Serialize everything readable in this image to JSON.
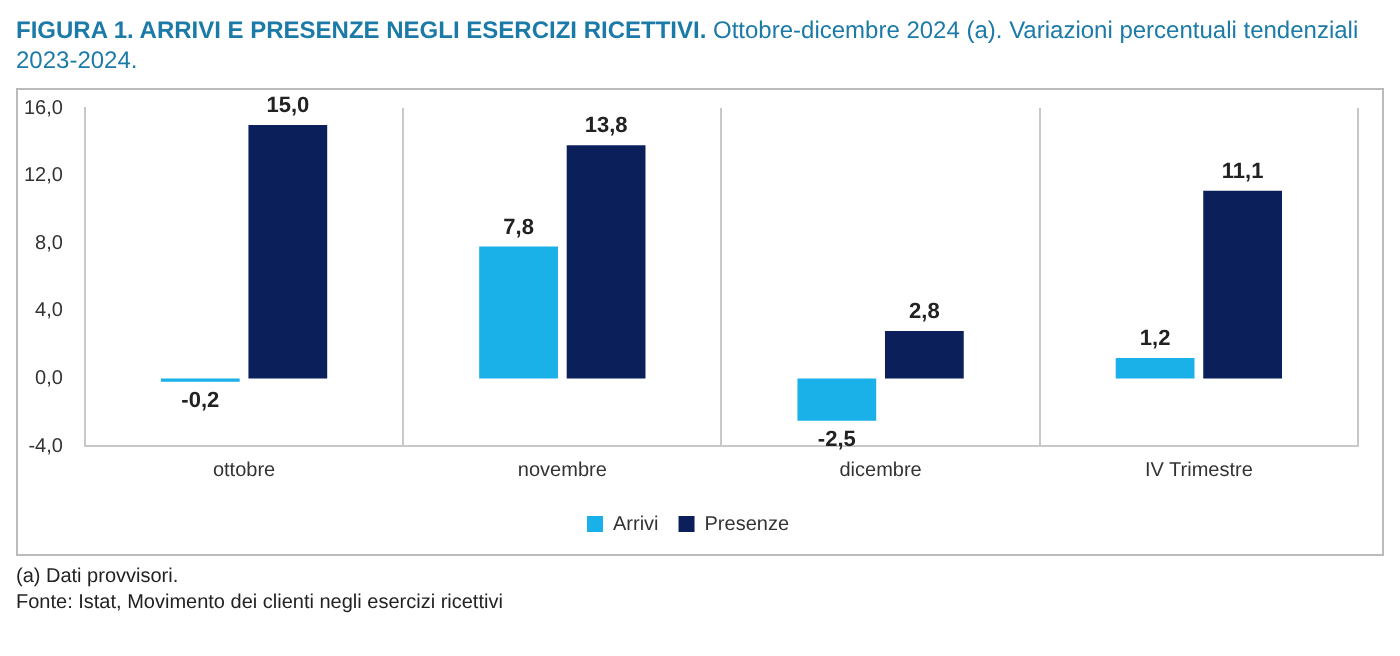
{
  "chart_data": {
    "type": "bar",
    "title": "FIGURA 1. ARRIVI E PRESENZE NEGLI ESERCIZI RICETTIVI.",
    "subtitle": "Ottobre-dicembre 2024 (a). Variazioni percentuali tendenziali 2023-2024.",
    "categories": [
      "ottobre",
      "novembre",
      "dicembre",
      "IV Trimestre"
    ],
    "series": [
      {
        "name": "Arrivi",
        "color": "#1ab0e8",
        "values": [
          -0.2,
          7.8,
          -2.5,
          1.2
        ],
        "value_labels": [
          "-0,2",
          "7,8",
          "-2,5",
          "1,2"
        ]
      },
      {
        "name": "Presenze",
        "color": "#0b1f5b",
        "values": [
          15.0,
          13.8,
          2.8,
          11.1
        ],
        "value_labels": [
          "15,0",
          "13,8",
          "2,8",
          "11,1"
        ]
      }
    ],
    "ylim": [
      -4,
      16
    ],
    "yticks": [
      {
        "value": -4,
        "label": "-4,0"
      },
      {
        "value": 0,
        "label": "0,0"
      },
      {
        "value": 4,
        "label": "4,0"
      },
      {
        "value": 8,
        "label": "8,0"
      },
      {
        "value": 12,
        "label": "12,0"
      },
      {
        "value": 16,
        "label": "16,0"
      }
    ],
    "grid": "x",
    "legend": "bottom",
    "annotations": [
      "(a) Dati provvisori.",
      "Fonte: Istat, Movimento dei clienti negli esercizi ricettivi"
    ]
  }
}
